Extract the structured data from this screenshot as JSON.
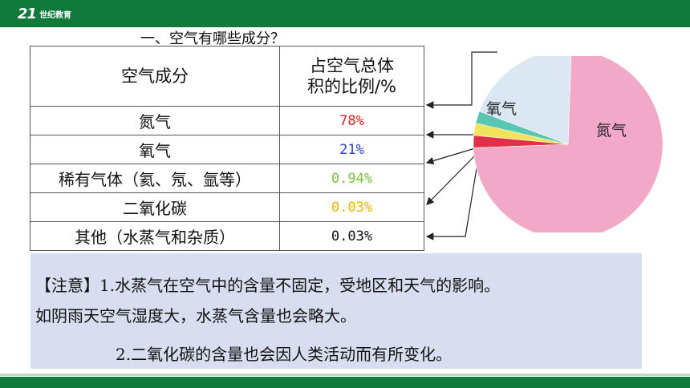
{
  "header": {
    "logo_mark": "21",
    "logo_text": "世纪教育"
  },
  "title": "一、空气有哪些成分？",
  "table": {
    "headers": [
      "空气成分",
      "占空气总体积的比例/%"
    ],
    "rows": [
      {
        "name": "氮气",
        "value": "78%",
        "color": "#e02020"
      },
      {
        "name": "氧气",
        "value": "21%",
        "color": "#2c3fd0"
      },
      {
        "name": "稀有气体（氦、氖、氩等）",
        "value": "0.94%",
        "color": "#7cc246"
      },
      {
        "name": "二氧化碳",
        "value": "0.03%",
        "color": "#f2b400"
      },
      {
        "name": "其他（水蒸气和杂质）",
        "value": "0.03%",
        "color": "#111111"
      }
    ]
  },
  "chart_data": {
    "type": "pie",
    "labels": [
      "氮气",
      "氧气"
    ],
    "slices": [
      {
        "label": "氮气",
        "value": 78,
        "color": "#f2a9c8"
      },
      {
        "label": "氧气",
        "value": 21,
        "color": "#dbe8f4"
      },
      {
        "label": "",
        "value": 0.94,
        "color": "#58c6b0"
      },
      {
        "label": "",
        "value": 0.03,
        "color": "#f2e35a"
      },
      {
        "label": "",
        "value": 0.03,
        "color": "#e0304a"
      }
    ]
  },
  "note": {
    "line1": "【注意】1.水蒸气在空气中的含量不固定，受地区和天气的影响。",
    "line2": "如阴雨天空气湿度大，水蒸气含量也会略大。",
    "line3": "2.二氧化碳的含量也会因人类活动而有所变化。"
  }
}
